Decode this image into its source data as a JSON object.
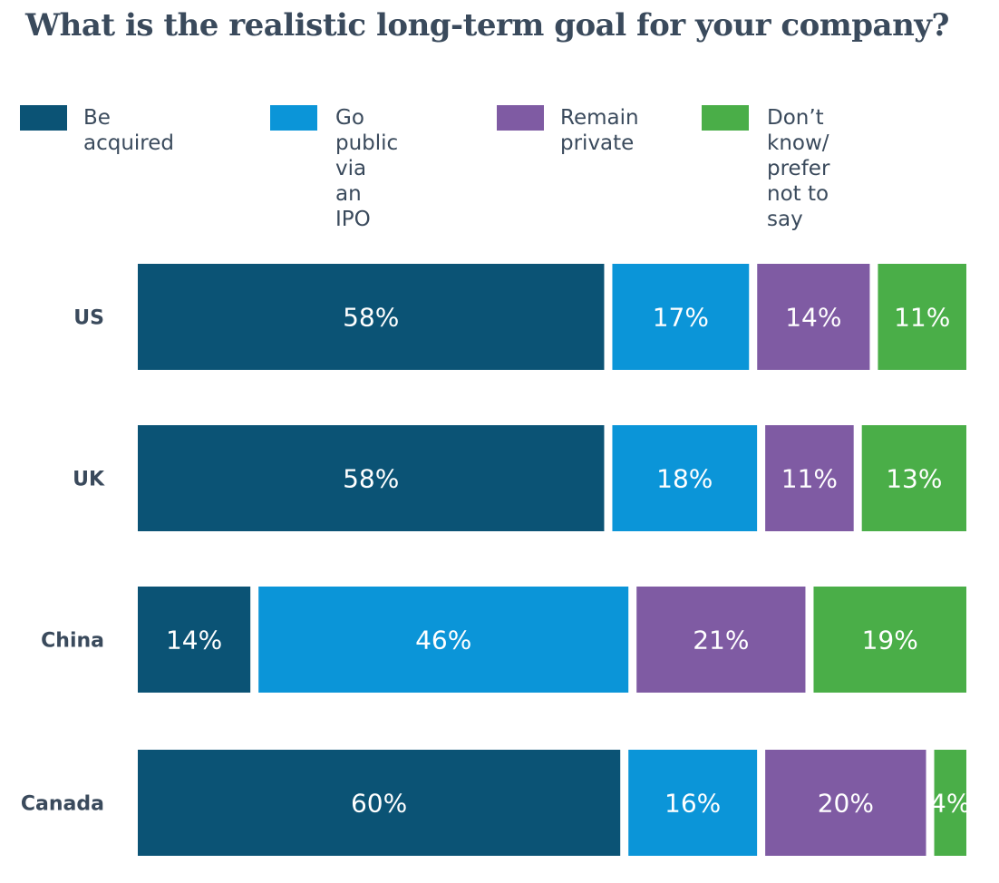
{
  "chart_data": {
    "type": "bar",
    "orientation": "horizontal",
    "stacked": true,
    "title": "What is the realistic long-term goal for your company?",
    "categories": [
      "US",
      "UK",
      "China",
      "Canada"
    ],
    "series": [
      {
        "name": "Be acquired",
        "color": "#0b5375",
        "values": [
          58,
          58,
          14,
          60
        ],
        "labels": [
          "58%",
          "58%",
          "14%",
          "60%"
        ]
      },
      {
        "name": "Go public\nvia an IPO",
        "color": "#0b95d8",
        "values": [
          17,
          18,
          46,
          16
        ],
        "labels": [
          "17%",
          "18%",
          "46%",
          "16%"
        ]
      },
      {
        "name": "Remain\nprivate",
        "color": "#7f5ba3",
        "values": [
          14,
          11,
          21,
          20
        ],
        "labels": [
          "14%",
          "11%",
          "21%",
          "20%"
        ]
      },
      {
        "name": "Don’t know/\nprefer not to say",
        "color": "#4aae48",
        "values": [
          11,
          13,
          19,
          4
        ],
        "labels": [
          "11%",
          "13%",
          "19%",
          "4%"
        ]
      }
    ],
    "xlim": [
      0,
      100
    ],
    "legend_position": "top",
    "grid": false
  }
}
